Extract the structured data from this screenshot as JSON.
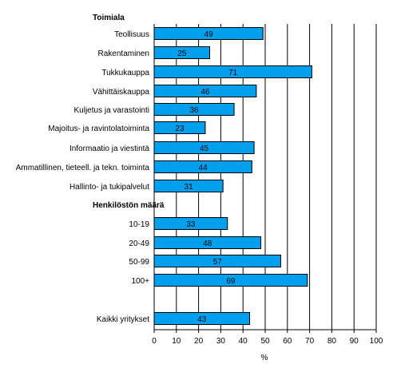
{
  "chart_data": {
    "type": "bar",
    "orientation": "horizontal",
    "group_headers": [
      {
        "label": "Toimiala",
        "before_index": 0
      },
      {
        "label": "Henkilöstön määrä",
        "before_index": 9
      }
    ],
    "categories": [
      "Teollisuus",
      "Rakentaminen",
      "Tukkukauppa",
      "Vähittäiskauppa",
      "Kuljetus ja varastointi",
      "Majoitus- ja ravintolatoiminta",
      "Informaatio ja viestintä",
      "Ammatillinen, tieteell. ja tekn. toiminta",
      "Hallinto- ja tukipalvelut",
      "10-19",
      "20-49",
      "50-99",
      "100+",
      "Kaikki yritykset"
    ],
    "values": [
      49,
      25,
      71,
      46,
      36,
      23,
      45,
      44,
      31,
      33,
      48,
      57,
      69,
      43
    ],
    "data_labels": [
      "49",
      "25",
      "71",
      "46",
      "36",
      "23",
      "45",
      "44",
      "31",
      "33",
      "48",
      "57",
      "69",
      "43"
    ],
    "xlabel": "%",
    "xlim": [
      0,
      100
    ],
    "xticks": [
      "0",
      "10",
      "20",
      "30",
      "40",
      "50",
      "60",
      "70",
      "80",
      "90",
      "100"
    ],
    "grid": "vertical",
    "bar_color": "#00a0ef",
    "bar_border_color": "#000000"
  }
}
